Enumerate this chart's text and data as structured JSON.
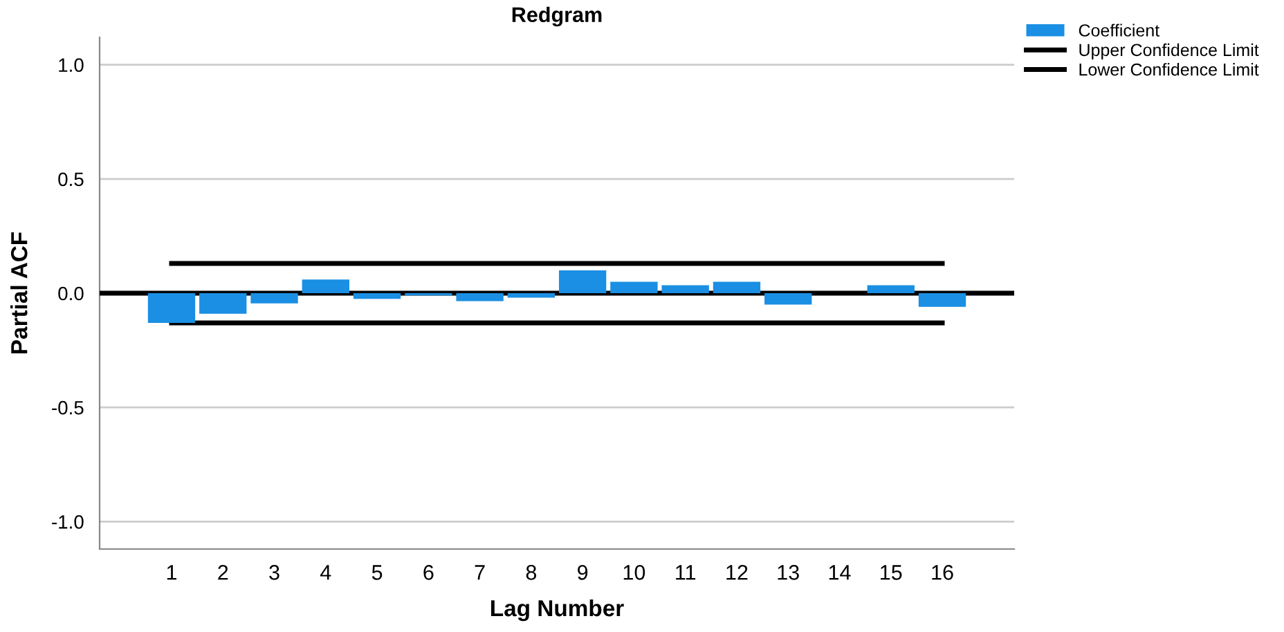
{
  "chart_data": {
    "type": "bar",
    "title": "Redgram",
    "xlabel": "Lag Number",
    "ylabel": "Partial ACF",
    "categories": [
      "1",
      "2",
      "3",
      "4",
      "5",
      "6",
      "7",
      "8",
      "9",
      "10",
      "11",
      "12",
      "13",
      "14",
      "15",
      "16"
    ],
    "series": [
      {
        "name": "Coefficient",
        "color": "#1a8fe3",
        "values": [
          -0.13,
          -0.09,
          -0.045,
          0.06,
          -0.025,
          -0.01,
          -0.035,
          -0.02,
          0.1,
          0.05,
          0.035,
          0.05,
          -0.05,
          0.0,
          0.035,
          -0.06
        ]
      },
      {
        "name": "Upper Confidence Limit",
        "type": "line",
        "color": "#000000",
        "values": [
          0.13,
          0.13,
          0.13,
          0.13,
          0.13,
          0.13,
          0.13,
          0.13,
          0.13,
          0.13,
          0.13,
          0.13,
          0.13,
          0.13,
          0.13,
          0.13
        ]
      },
      {
        "name": "Lower Confidence Limit",
        "type": "line",
        "color": "#000000",
        "values": [
          -0.13,
          -0.13,
          -0.13,
          -0.13,
          -0.13,
          -0.13,
          -0.13,
          -0.13,
          -0.13,
          -0.13,
          -0.13,
          -0.13,
          -0.13,
          -0.13,
          -0.13,
          -0.13
        ]
      }
    ],
    "ylim": [
      -1.12,
      1.12
    ],
    "yticks": [
      {
        "value": -1.0,
        "label": "-1.0"
      },
      {
        "value": -0.5,
        "label": "-0.5"
      },
      {
        "value": 0.0,
        "label": "0.0"
      },
      {
        "value": 0.5,
        "label": "0.5"
      },
      {
        "value": 1.0,
        "label": "1.0"
      }
    ],
    "ref_lines": [
      {
        "axis": "y",
        "value": 0,
        "color": "#000000"
      }
    ],
    "grid": "y",
    "legend": "top right"
  }
}
